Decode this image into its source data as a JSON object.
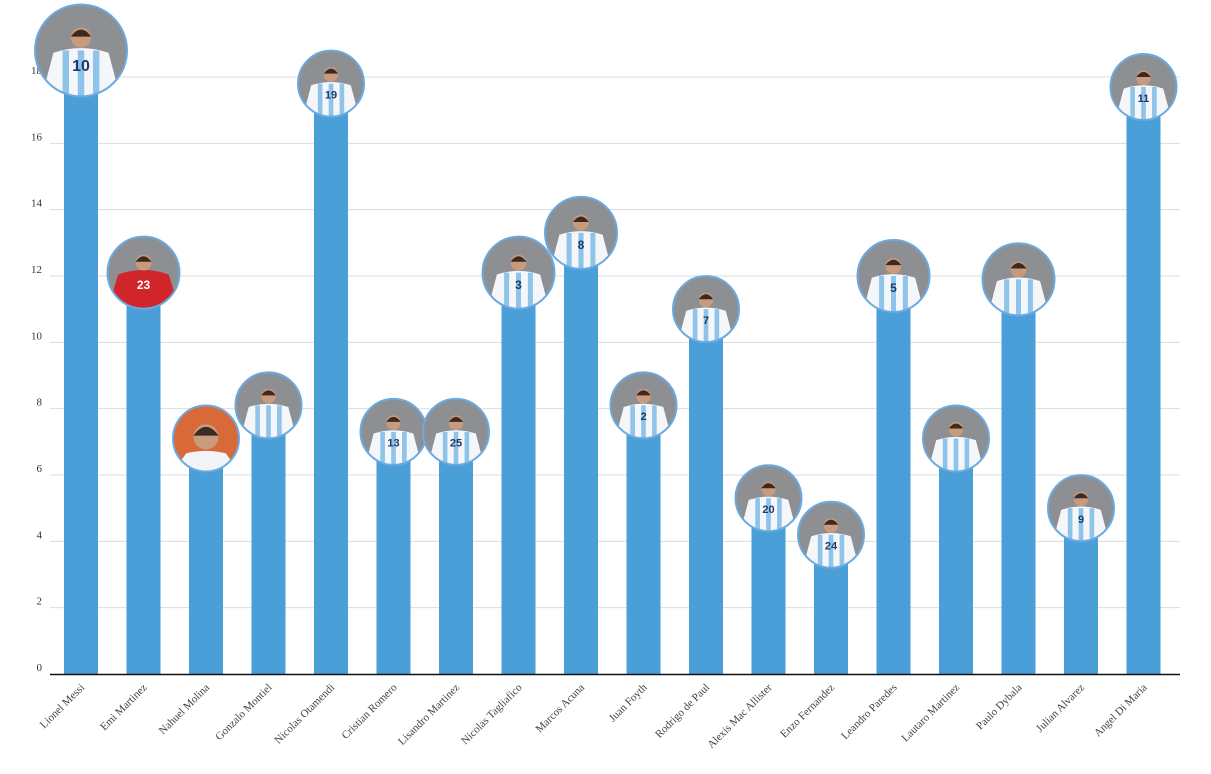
{
  "chart_data": {
    "type": "bar",
    "title": "",
    "xlabel": "",
    "ylabel": "",
    "ylim": [
      0,
      18
    ],
    "yticks": [
      0,
      2,
      4,
      6,
      8,
      10,
      12,
      14,
      16,
      18
    ],
    "grid": true,
    "bar_color": "#4a9fd8",
    "marker_border_color": "#6aaae0",
    "categories": [
      "Lionel Messi",
      "Emi Martinez",
      "Nahuel Molina",
      "Gonzalo Montiel",
      "Nicolas Otamendi",
      "Cristian Romero",
      "Lisandro Martinez",
      "Nicolas Tagliafico",
      "Marcos Acuna",
      "Juan Foyth",
      "Rodrigo de Paul",
      "Alexis Mac Allister",
      "Enzo Fernandez",
      "Leandro Paredes",
      "Lautaro Martinez",
      "Paulo Dybala",
      "Julian Alvarez",
      "Angel Di Maria"
    ],
    "values": [
      18.8,
      12.1,
      7.1,
      8.1,
      17.8,
      7.3,
      7.3,
      12.1,
      13.3,
      8.1,
      11.0,
      5.3,
      4.2,
      12.0,
      7.1,
      11.9,
      5.0,
      17.7
    ],
    "markers": [
      {
        "kind": "player-photo-icon",
        "shirt": "10",
        "kit": "home"
      },
      {
        "kind": "player-photo-icon",
        "shirt": "23",
        "kit": "goalkeeper"
      },
      {
        "kind": "player-photo-icon",
        "shirt": "",
        "kit": "portrait"
      },
      {
        "kind": "player-photo-icon",
        "shirt": "",
        "kit": "home"
      },
      {
        "kind": "player-photo-icon",
        "shirt": "19",
        "kit": "home"
      },
      {
        "kind": "player-photo-icon",
        "shirt": "13",
        "kit": "home"
      },
      {
        "kind": "player-photo-icon",
        "shirt": "25",
        "kit": "home"
      },
      {
        "kind": "player-photo-icon",
        "shirt": "3",
        "kit": "home"
      },
      {
        "kind": "player-photo-icon",
        "shirt": "8",
        "kit": "home"
      },
      {
        "kind": "player-photo-icon",
        "shirt": "2",
        "kit": "home"
      },
      {
        "kind": "player-photo-icon",
        "shirt": "7",
        "kit": "home"
      },
      {
        "kind": "player-photo-icon",
        "shirt": "20",
        "kit": "home"
      },
      {
        "kind": "player-photo-icon",
        "shirt": "24",
        "kit": "home"
      },
      {
        "kind": "player-photo-icon",
        "shirt": "5",
        "kit": "home"
      },
      {
        "kind": "player-photo-icon",
        "shirt": "",
        "kit": "home"
      },
      {
        "kind": "player-photo-icon",
        "shirt": "",
        "kit": "home"
      },
      {
        "kind": "player-photo-icon",
        "shirt": "9",
        "kit": "home"
      },
      {
        "kind": "player-photo-icon",
        "shirt": "11",
        "kit": "home"
      }
    ]
  }
}
